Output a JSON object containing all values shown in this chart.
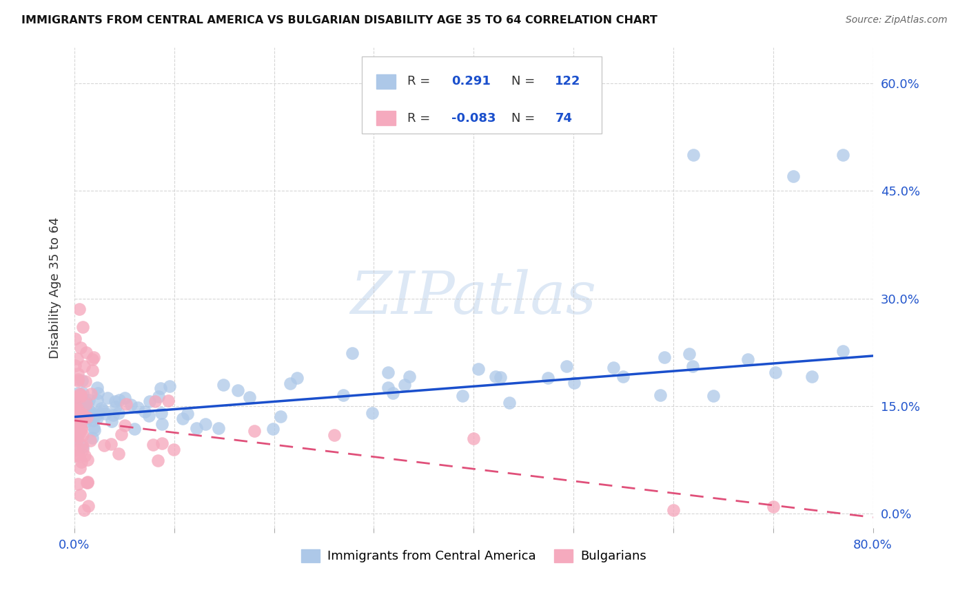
{
  "title": "IMMIGRANTS FROM CENTRAL AMERICA VS BULGARIAN DISABILITY AGE 35 TO 64 CORRELATION CHART",
  "source": "Source: ZipAtlas.com",
  "ylabel": "Disability Age 35 to 64",
  "xlim": [
    0.0,
    0.8
  ],
  "ylim": [
    -0.02,
    0.65
  ],
  "ytick_vals": [
    0.0,
    0.15,
    0.3,
    0.45,
    0.6
  ],
  "ytick_labels": [
    "0.0%",
    "15.0%",
    "30.0%",
    "45.0%",
    "60.0%"
  ],
  "blue_R": 0.291,
  "blue_N": 122,
  "pink_R": -0.083,
  "pink_N": 74,
  "blue_color": "#adc8e8",
  "pink_color": "#f5aabe",
  "blue_line_color": "#1a4fcc",
  "pink_line_color": "#e0507a",
  "blue_line_y0": 0.135,
  "blue_line_y1": 0.22,
  "pink_line_y0": 0.13,
  "pink_line_y1": -0.005,
  "watermark": "ZIPatlas",
  "watermark_color": "#dde8f5",
  "legend_blue_label": "Immigrants from Central America",
  "legend_pink_label": "Bulgarians"
}
